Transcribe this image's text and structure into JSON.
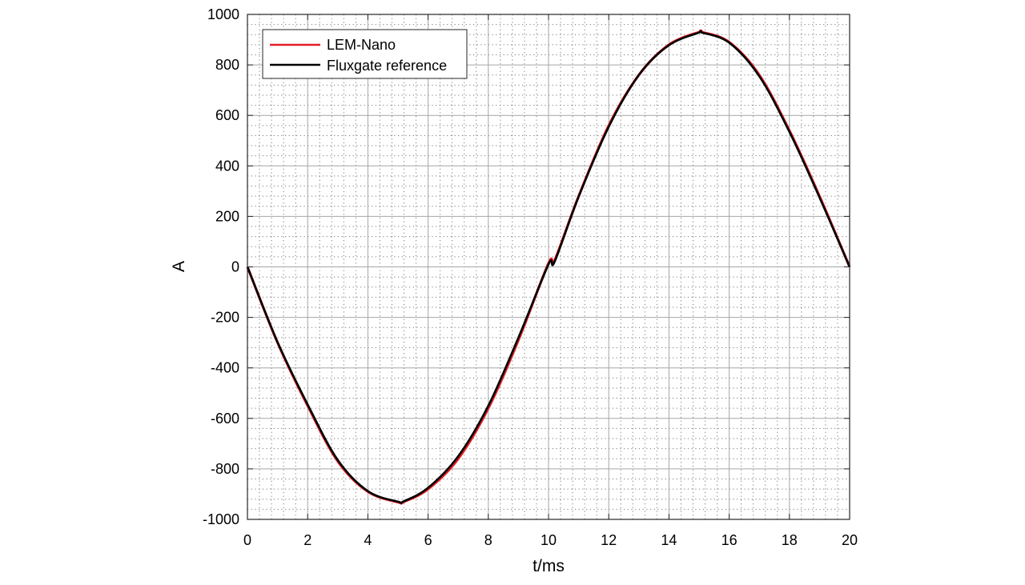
{
  "chart_data": {
    "type": "line",
    "title": "",
    "xlabel": "t/ms",
    "ylabel": "A",
    "xlim": [
      0,
      20
    ],
    "ylim": [
      -1000,
      1000
    ],
    "xticks": [
      0,
      2,
      4,
      6,
      8,
      10,
      12,
      14,
      16,
      18,
      20
    ],
    "yticks": [
      -1000,
      -800,
      -600,
      -400,
      -200,
      0,
      200,
      400,
      600,
      800,
      1000
    ],
    "grid": true,
    "minor_grid": true,
    "legend_position": "top-left",
    "series": [
      {
        "name": "LEM-Nano",
        "color": "#e41e26",
        "x": [
          0,
          1,
          2,
          3,
          4,
          5,
          5.2,
          6,
          7,
          8,
          9,
          10,
          10.2,
          11,
          12,
          13,
          14,
          15,
          15.1,
          16,
          17,
          18,
          19,
          20
        ],
        "y": [
          0,
          -300,
          -550,
          -770,
          -890,
          -932,
          -930,
          -880,
          -760,
          -560,
          -290,
          15,
          25,
          280,
          560,
          760,
          880,
          930,
          930,
          890,
          760,
          540,
          280,
          0
        ]
      },
      {
        "name": "Fluxgate reference",
        "color": "#000000",
        "x": [
          0,
          1,
          2,
          3,
          4,
          5,
          5.2,
          6,
          7,
          8,
          9,
          10,
          10.2,
          11,
          12,
          13,
          14,
          15,
          15.1,
          16,
          17,
          18,
          19,
          20
        ],
        "y": [
          0,
          -298,
          -545,
          -765,
          -888,
          -930,
          -928,
          -875,
          -750,
          -550,
          -280,
          10,
          20,
          278,
          555,
          760,
          878,
          928,
          928,
          888,
          755,
          535,
          275,
          0
        ]
      }
    ]
  }
}
